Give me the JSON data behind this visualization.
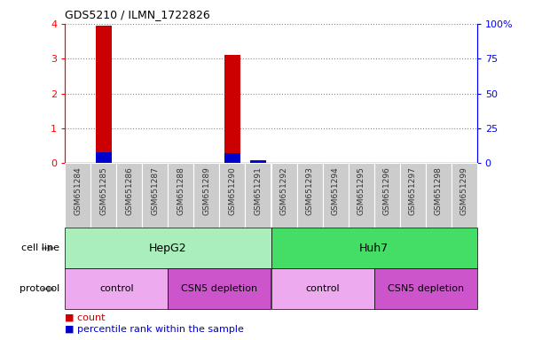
{
  "title": "GDS5210 / ILMN_1722826",
  "samples": [
    "GSM651284",
    "GSM651285",
    "GSM651286",
    "GSM651287",
    "GSM651288",
    "GSM651289",
    "GSM651290",
    "GSM651291",
    "GSM651292",
    "GSM651293",
    "GSM651294",
    "GSM651295",
    "GSM651296",
    "GSM651297",
    "GSM651298",
    "GSM651299"
  ],
  "count_values": [
    0,
    3.95,
    0,
    0,
    0,
    0,
    3.1,
    0,
    0,
    0,
    0,
    0,
    0,
    0,
    0,
    0
  ],
  "percentile_values": [
    0,
    8,
    0,
    0,
    0,
    0,
    7,
    2,
    0,
    0,
    0,
    0,
    0,
    0,
    0,
    0
  ],
  "bar_color_count": "#cc0000",
  "bar_color_pct": "#0000cc",
  "ylim_left": [
    0,
    4
  ],
  "ylim_right": [
    0,
    100
  ],
  "yticks_left": [
    0,
    1,
    2,
    3,
    4
  ],
  "yticks_right": [
    0,
    25,
    50,
    75,
    100
  ],
  "ytick_labels_right": [
    "0",
    "25",
    "50",
    "75",
    "100%"
  ],
  "cell_line_groups": [
    {
      "label": "HepG2",
      "start": 0,
      "end": 7,
      "color": "#aaeebb"
    },
    {
      "label": "Huh7",
      "start": 8,
      "end": 15,
      "color": "#44dd66"
    }
  ],
  "protocol_groups": [
    {
      "label": "control",
      "start": 0,
      "end": 3,
      "color": "#eeaaee"
    },
    {
      "label": "CSN5 depletion",
      "start": 4,
      "end": 7,
      "color": "#cc55cc"
    },
    {
      "label": "control",
      "start": 8,
      "end": 11,
      "color": "#eeaaee"
    },
    {
      "label": "CSN5 depletion",
      "start": 12,
      "end": 15,
      "color": "#cc55cc"
    }
  ],
  "cell_line_label": "cell line",
  "protocol_label": "protocol",
  "legend_count_label": "count",
  "legend_pct_label": "percentile rank within the sample",
  "sample_bg_color": "#cccccc",
  "sample_text_color": "#333333",
  "bar_width": 0.6
}
